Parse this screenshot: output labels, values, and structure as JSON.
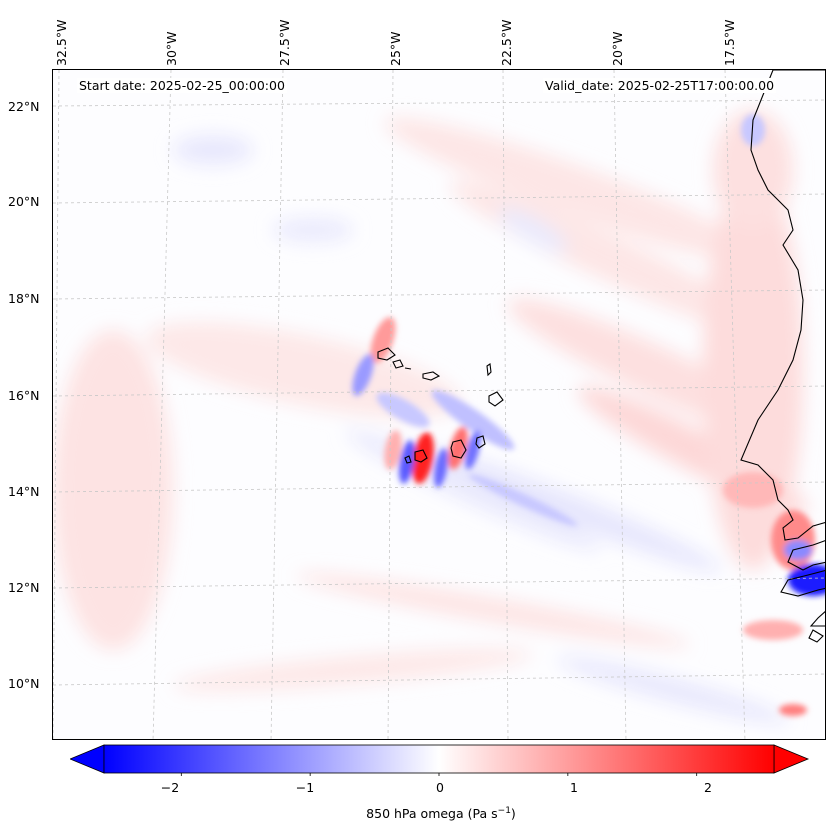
{
  "map": {
    "start_date": "Start date: 2025-02-25_00:00:00",
    "valid_date": "Valid_date: 2025-02-25T17:00:00.00",
    "lon_labels": [
      "32.5°W",
      "30°W",
      "27.5°W",
      "25°W",
      "22.5°W",
      "20°W",
      "17.5°W"
    ],
    "lat_labels": [
      "22°N",
      "20°N",
      "18°N",
      "16°N",
      "14°N",
      "12°N",
      "10°N"
    ],
    "variable": "850 hPa omega",
    "units_prefix": "(Pa s",
    "units_exp": "−1",
    "units_suffix": ")"
  },
  "colorbar": {
    "ticks": [
      "−2",
      "−1",
      "0",
      "1",
      "2"
    ],
    "tick_values": [
      -2,
      -1,
      0,
      1,
      2
    ],
    "range": [
      -2.6,
      2.6
    ],
    "colormap": "bwr",
    "colors": {
      "negative": "#0000ff",
      "zero": "#ffffff",
      "positive": "#ff0000"
    }
  },
  "colors": {
    "coastline": "#000000",
    "gridline": "#c8c8c8",
    "background": "#ffffff"
  }
}
